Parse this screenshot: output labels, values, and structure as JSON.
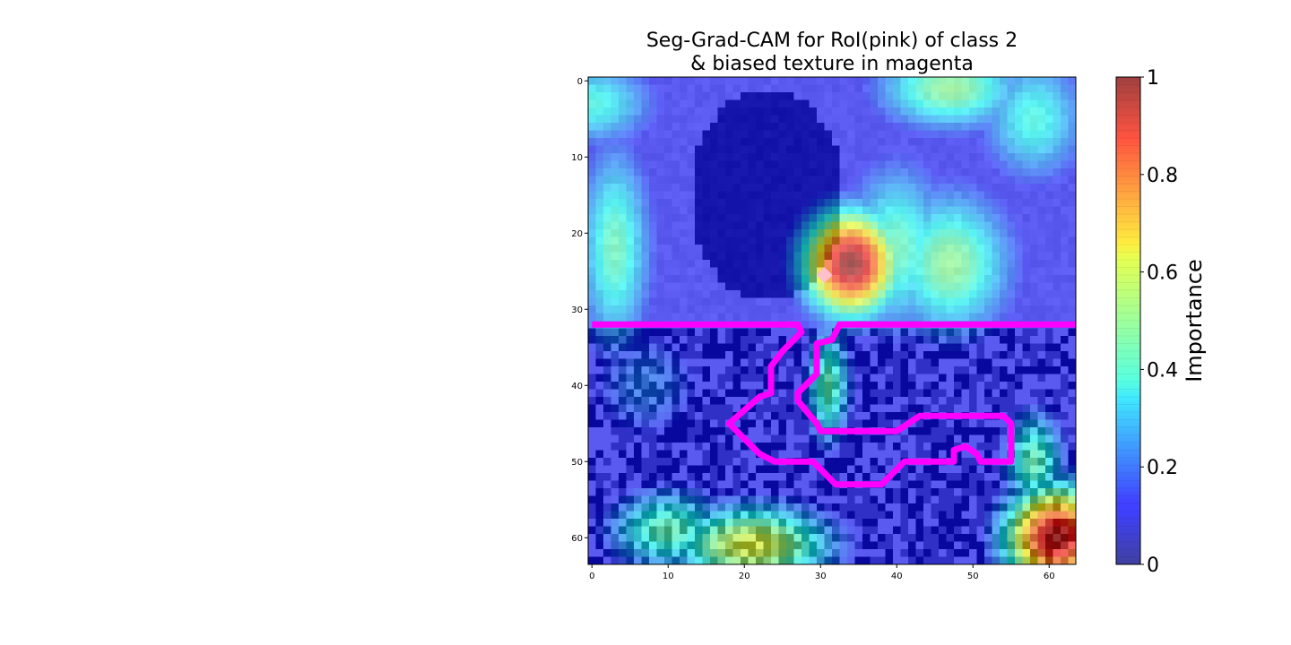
{
  "figure": {
    "title_line1": "Seg-Grad-CAM for RoI(pink) of class 2",
    "title_line2": "& biased texture in magenta"
  },
  "colors": {
    "roi_outline": "#ff00ff",
    "roi_marker": "#ffc0cb",
    "colormap": "jet",
    "overlay_alpha": 0.6
  },
  "chart_data": {
    "type": "heatmap",
    "title": "Seg-Grad-CAM for RoI(pink) of class 2\n& biased texture in magenta",
    "image_size": [
      64,
      64
    ],
    "xlim": [
      -0.5,
      63.5
    ],
    "ylim": [
      63.5,
      -0.5
    ],
    "x_ticks": [
      0,
      10,
      20,
      30,
      40,
      50,
      60
    ],
    "y_ticks": [
      0,
      10,
      20,
      30,
      40,
      50,
      60
    ],
    "colorbar": {
      "label": "Importance",
      "range": [
        0,
        1
      ],
      "ticks": [
        0,
        0.2,
        0.4,
        0.6,
        0.8,
        1
      ],
      "tick_labels": [
        "0",
        "0.2",
        "0.4",
        "0.6",
        "0.8",
        "1"
      ]
    },
    "importance_hotspots": [
      {
        "x": 34,
        "y": 24,
        "value": 1.0,
        "sx": 4.5,
        "sy": 5
      },
      {
        "x": 40,
        "y": 22,
        "value": 0.45,
        "sx": 5,
        "sy": 8
      },
      {
        "x": 47,
        "y": 24,
        "value": 0.5,
        "sx": 6,
        "sy": 7
      },
      {
        "x": 3,
        "y": 22,
        "value": 0.45,
        "sx": 3.5,
        "sy": 10
      },
      {
        "x": 61,
        "y": 60,
        "value": 0.95,
        "sx": 5,
        "sy": 5
      },
      {
        "x": 21,
        "y": 61,
        "value": 0.6,
        "sx": 8,
        "sy": 4
      },
      {
        "x": 10,
        "y": 59,
        "value": 0.45,
        "sx": 6,
        "sy": 4
      },
      {
        "x": 31,
        "y": 40,
        "value": 0.45,
        "sx": 2.2,
        "sy": 6
      },
      {
        "x": 47,
        "y": 1,
        "value": 0.5,
        "sx": 7,
        "sy": 4
      },
      {
        "x": 58,
        "y": 5,
        "value": 0.4,
        "sx": 5,
        "sy": 6
      },
      {
        "x": 0,
        "y": 3,
        "value": 0.4,
        "sx": 6,
        "sy": 4
      },
      {
        "x": 58,
        "y": 50,
        "value": 0.45,
        "sx": 3,
        "sy": 5
      },
      {
        "x": 7,
        "y": 40,
        "value": 0.22,
        "sx": 6,
        "sy": 6
      }
    ],
    "dark_object_region": {
      "center_x": 23,
      "center_y": 15,
      "rx": 10,
      "ry": 14
    },
    "biased_texture": {
      "y_start": 33,
      "y_end": 63
    },
    "roi_marker": {
      "x": 30.5,
      "y": 25.5
    },
    "magenta_contour": [
      [
        0,
        32
      ],
      [
        27,
        32
      ],
      [
        27.5,
        33
      ],
      [
        25,
        35.5
      ],
      [
        23.5,
        37.5
      ],
      [
        23.5,
        41
      ],
      [
        22,
        41.5
      ],
      [
        18,
        45
      ],
      [
        22,
        49
      ],
      [
        24,
        50
      ],
      [
        29,
        50
      ],
      [
        32,
        53
      ],
      [
        38,
        53
      ],
      [
        41,
        50
      ],
      [
        47.5,
        50
      ],
      [
        47.5,
        48.5
      ],
      [
        49,
        48
      ],
      [
        50.5,
        49
      ],
      [
        51,
        50
      ],
      [
        55,
        50
      ],
      [
        55,
        45
      ],
      [
        54,
        44
      ],
      [
        43,
        44
      ],
      [
        40,
        46
      ],
      [
        30,
        46
      ],
      [
        29.5,
        45
      ],
      [
        27,
        42
      ],
      [
        27,
        41
      ],
      [
        29.5,
        38.5
      ],
      [
        29.5,
        34.5
      ],
      [
        31.5,
        34
      ],
      [
        32,
        33
      ],
      [
        32.5,
        32
      ],
      [
        63.5,
        32
      ]
    ]
  }
}
